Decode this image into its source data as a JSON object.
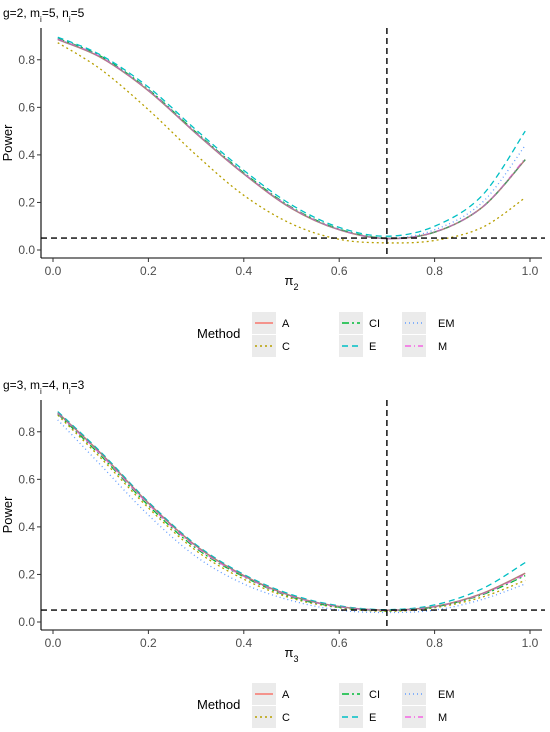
{
  "chart_data": [
    {
      "type": "line",
      "title": "g=2, m",
      "title_parts": [
        {
          "text": "g=2, m",
          "sub": false
        },
        {
          "text": "i",
          "sub": true
        },
        {
          "text": "=5, n",
          "sub": false
        },
        {
          "text": "i",
          "sub": true
        },
        {
          "text": "=5",
          "sub": false
        }
      ],
      "xlabel": "π",
      "xlabel_sub": "2",
      "ylabel": "Power",
      "xlim": [
        0.0,
        1.0
      ],
      "ylim": [
        0.0,
        0.9
      ],
      "xticks": [
        0.0,
        0.2,
        0.4,
        0.6,
        0.8,
        1.0
      ],
      "xtick_labels": [
        "0.0",
        "0.2",
        "0.4",
        "0.6",
        "0.8",
        "1.0"
      ],
      "yticks": [
        0.0,
        0.2,
        0.4,
        0.6,
        0.8
      ],
      "ytick_labels": [
        "0.0",
        "0.2",
        "0.4",
        "0.6",
        "0.8"
      ],
      "vline": 0.7,
      "hline": 0.05,
      "x": [
        0.01,
        0.1,
        0.2,
        0.3,
        0.4,
        0.5,
        0.6,
        0.7,
        0.8,
        0.9,
        0.99
      ],
      "series": [
        {
          "name": "A",
          "color": "#F8766D",
          "dash": "",
          "values": [
            0.885,
            0.81,
            0.67,
            0.49,
            0.32,
            0.175,
            0.085,
            0.048,
            0.075,
            0.18,
            0.38
          ]
        },
        {
          "name": "C",
          "color": "#B79F00",
          "dash": "2,3",
          "values": [
            0.872,
            0.76,
            0.59,
            0.4,
            0.23,
            0.11,
            0.045,
            0.03,
            0.04,
            0.095,
            0.22
          ]
        },
        {
          "name": "CI",
          "color": "#00BA38",
          "dash": "7,3,2,3",
          "values": [
            0.89,
            0.815,
            0.675,
            0.495,
            0.325,
            0.18,
            0.088,
            0.05,
            0.075,
            0.18,
            0.38
          ]
        },
        {
          "name": "E",
          "color": "#00BFC4",
          "dash": "6,4",
          "values": [
            0.895,
            0.82,
            0.685,
            0.505,
            0.335,
            0.19,
            0.095,
            0.058,
            0.1,
            0.23,
            0.5
          ]
        },
        {
          "name": "EM",
          "color": "#619CFF",
          "dash": "1,3",
          "values": [
            0.888,
            0.812,
            0.672,
            0.492,
            0.322,
            0.177,
            0.086,
            0.049,
            0.085,
            0.2,
            0.44
          ]
        },
        {
          "name": "M",
          "color": "#F564E3",
          "dash": "6,3,1,3",
          "values": [
            0.887,
            0.812,
            0.672,
            0.492,
            0.322,
            0.177,
            0.086,
            0.048,
            0.076,
            0.18,
            0.385
          ]
        }
      ]
    },
    {
      "type": "line",
      "title": "g=3, m",
      "title_parts": [
        {
          "text": "g=3, m",
          "sub": false
        },
        {
          "text": "i",
          "sub": true
        },
        {
          "text": "=4, n",
          "sub": false
        },
        {
          "text": "i",
          "sub": true
        },
        {
          "text": "=3",
          "sub": false
        }
      ],
      "xlabel": "π",
      "xlabel_sub": "3",
      "ylabel": "Power",
      "xlim": [
        0.0,
        1.0
      ],
      "ylim": [
        0.0,
        0.9
      ],
      "xticks": [
        0.0,
        0.2,
        0.4,
        0.6,
        0.8,
        1.0
      ],
      "xtick_labels": [
        "0.0",
        "0.2",
        "0.4",
        "0.6",
        "0.8",
        "1.0"
      ],
      "yticks": [
        0.0,
        0.2,
        0.4,
        0.6,
        0.8
      ],
      "ytick_labels": [
        "0.0",
        "0.2",
        "0.4",
        "0.6",
        "0.8"
      ],
      "vline": 0.7,
      "hline": 0.05,
      "x": [
        0.01,
        0.1,
        0.2,
        0.3,
        0.4,
        0.5,
        0.6,
        0.7,
        0.8,
        0.9,
        0.99
      ],
      "series": [
        {
          "name": "A",
          "color": "#F8766D",
          "dash": "",
          "values": [
            0.88,
            0.71,
            0.5,
            0.32,
            0.195,
            0.11,
            0.065,
            0.05,
            0.065,
            0.12,
            0.205
          ]
        },
        {
          "name": "C",
          "color": "#B79F00",
          "dash": "2,3",
          "values": [
            0.87,
            0.69,
            0.48,
            0.3,
            0.18,
            0.1,
            0.06,
            0.045,
            0.06,
            0.105,
            0.175
          ]
        },
        {
          "name": "CI",
          "color": "#00BA38",
          "dash": "7,3,2,3",
          "values": [
            0.875,
            0.7,
            0.49,
            0.31,
            0.19,
            0.105,
            0.062,
            0.048,
            0.063,
            0.115,
            0.195
          ]
        },
        {
          "name": "E",
          "color": "#00BFC4",
          "dash": "6,4",
          "values": [
            0.885,
            0.715,
            0.505,
            0.325,
            0.2,
            0.115,
            0.068,
            0.052,
            0.072,
            0.14,
            0.25
          ]
        },
        {
          "name": "EM",
          "color": "#619CFF",
          "dash": "1,3",
          "values": [
            0.85,
            0.66,
            0.45,
            0.275,
            0.16,
            0.09,
            0.05,
            0.04,
            0.05,
            0.095,
            0.16
          ]
        },
        {
          "name": "M",
          "color": "#F564E3",
          "dash": "6,3,1,3",
          "values": [
            0.878,
            0.705,
            0.495,
            0.315,
            0.192,
            0.108,
            0.064,
            0.049,
            0.064,
            0.118,
            0.2
          ]
        }
      ]
    }
  ],
  "legend": {
    "title": "Method",
    "entries": [
      {
        "label": "A",
        "color": "#F8766D",
        "dash": ""
      },
      {
        "label": "C",
        "color": "#B79F00",
        "dash": "2,3"
      },
      {
        "label": "CI",
        "color": "#00BA38",
        "dash": "7,3,2,3"
      },
      {
        "label": "E",
        "color": "#00BFC4",
        "dash": "6,4"
      },
      {
        "label": "EM",
        "color": "#619CFF",
        "dash": "1,3"
      },
      {
        "label": "M",
        "color": "#F564E3",
        "dash": "6,3,1,3"
      }
    ],
    "key_background": "#EBEBEB"
  }
}
